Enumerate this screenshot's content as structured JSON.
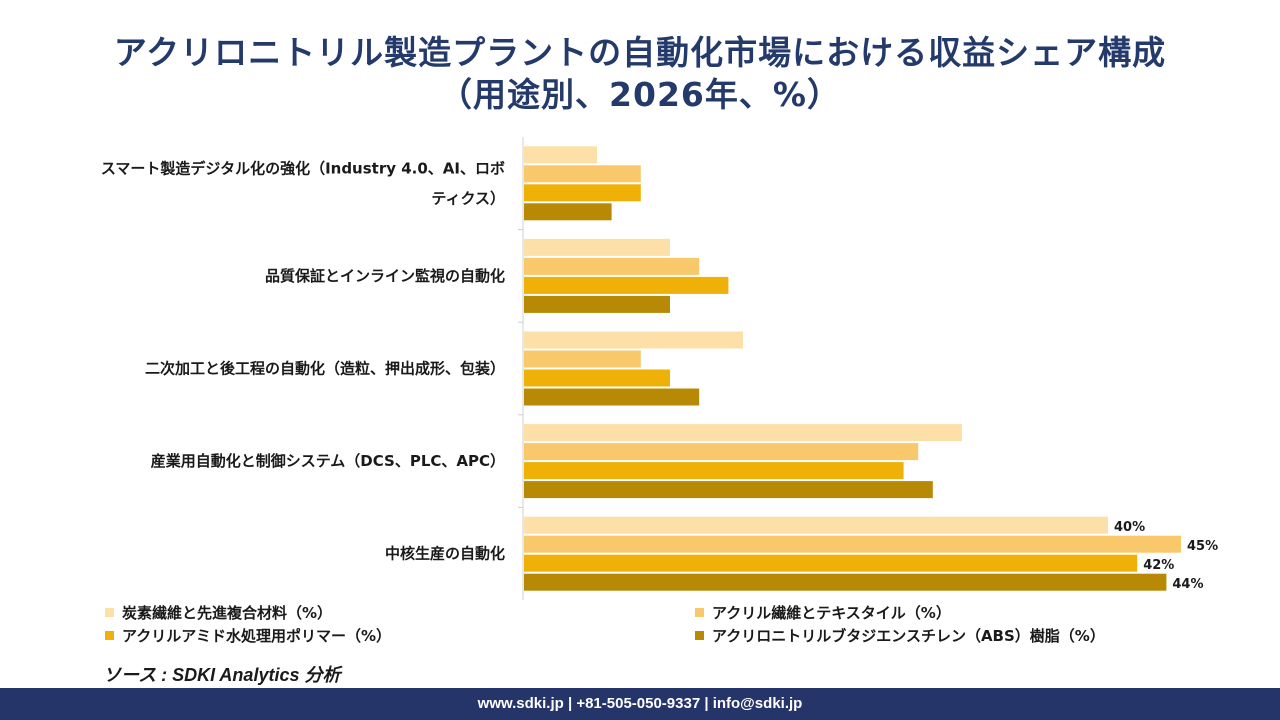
{
  "title": {
    "line1": "アクリロニトリル製造プラントの自動化市場における収益シェア構成",
    "line2": "（用途別、2026年、%）"
  },
  "chart_data": {
    "type": "bar",
    "orientation": "horizontal",
    "categories": [
      "スマート製造デジタル化の強化（Industry 4.0、AI、ロボティクス）",
      "品質保証とインライン監視の自動化",
      "二次加工と後工程の自動化（造粒、押出成形、包装）",
      "産業用自動化と制御システム（DCS、PLC、APC）",
      "中核生産の自動化"
    ],
    "category_lines": [
      [
        "スマート製造デジタル化の強化（Industry 4.0、AI、ロボ",
        "ティクス）"
      ],
      [
        "品質保証とインライン監視の自動化"
      ],
      [
        "二次加工と後工程の自動化（造粒、押出成形、包装）"
      ],
      [
        "産業用自動化と制御システム（DCS、PLC、APC）"
      ],
      [
        "中核生産の自動化"
      ]
    ],
    "series": [
      {
        "name": "炭素繊維と先進複合材料（%）",
        "color": "#fde0a8",
        "values": [
          5,
          10,
          15,
          30,
          40
        ]
      },
      {
        "name": "アクリル繊維とテキスタイル（%）",
        "color": "#f9c86a",
        "values": [
          8,
          12,
          8,
          27,
          45
        ]
      },
      {
        "name": "アクリルアミド水処理用ポリマー（%）",
        "color": "#efb007",
        "values": [
          8,
          14,
          10,
          26,
          42
        ]
      },
      {
        "name": "アクリロニトリルブタジエンスチレン（ABS）樹脂（%）",
        "color": "#b88905",
        "values": [
          6,
          10,
          12,
          28,
          44
        ]
      }
    ],
    "data_labels": [
      "40%",
      "45%",
      "42%",
      "44%"
    ],
    "xlim": [
      0,
      46
    ],
    "grid": false,
    "legend_position": "bottom"
  },
  "source": "ソース : SDKI Analytics 分析",
  "footer": "www.sdki.jp | +81-505-050-9337 | info@sdki.jp"
}
